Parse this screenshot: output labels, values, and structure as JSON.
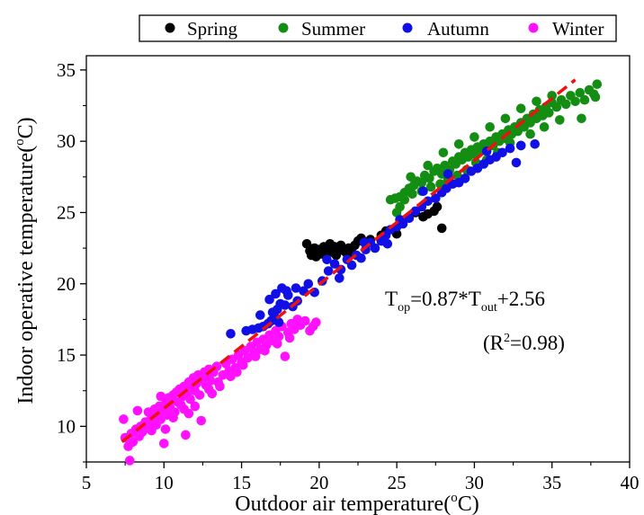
{
  "colors": {
    "spring": "#000000",
    "summer": "#138e13",
    "autumn": "#1010e6",
    "winter": "#ff10ff",
    "fit": "#ee1111",
    "axis": "#000000"
  },
  "chart_data": {
    "type": "scatter",
    "title": "",
    "xlabel": "Outdoor air temperature(",
    "xlabel_sup": "o",
    "xlabel_tail": "C)",
    "ylabel": "Indoor operative temperature(",
    "ylabel_sup": "o",
    "ylabel_tail": "C)",
    "xlim": [
      5,
      40
    ],
    "ylim": [
      7.5,
      36
    ],
    "xticks": [
      "5",
      "10",
      "15",
      "20",
      "25",
      "30",
      "35",
      "40"
    ],
    "yticks": [
      "10",
      "15",
      "20",
      "25",
      "30",
      "35"
    ],
    "grid": false,
    "legend": "top",
    "legend_entries": [
      "Spring",
      "Summer",
      "Autumn",
      "Winter"
    ],
    "annotation": {
      "eq_main": "T",
      "eq_sub1": "op",
      "eq_mid": "=0.87*T",
      "eq_sub2": "out",
      "eq_tail": "+2.56",
      "r2_open": "(R",
      "r2_sup": "2",
      "r2_tail": "=0.98)"
    },
    "fit_line": {
      "slope": 0.87,
      "intercept": 2.56,
      "x_range": [
        7.3,
        36.5
      ]
    },
    "series": [
      {
        "name": "Spring",
        "points": [
          [
            19.2,
            22.8
          ],
          [
            19.4,
            22.3
          ],
          [
            19.5,
            22.0
          ],
          [
            19.7,
            22.5
          ],
          [
            19.8,
            21.9
          ],
          [
            20.0,
            22.4
          ],
          [
            20.1,
            22.1
          ],
          [
            20.3,
            22.6
          ],
          [
            20.4,
            22.0
          ],
          [
            20.6,
            22.3
          ],
          [
            20.7,
            22.8
          ],
          [
            20.9,
            22.2
          ],
          [
            21.0,
            22.6
          ],
          [
            21.1,
            22.0
          ],
          [
            21.3,
            22.4
          ],
          [
            21.4,
            22.7
          ],
          [
            21.6,
            22.3
          ],
          [
            21.8,
            22.1
          ],
          [
            21.9,
            22.5
          ],
          [
            22.1,
            22.2
          ],
          [
            22.3,
            22.7
          ],
          [
            22.5,
            23.0
          ],
          [
            22.7,
            23.2
          ],
          [
            23.0,
            22.9
          ],
          [
            23.3,
            23.1
          ],
          [
            24.0,
            23.4
          ],
          [
            24.3,
            23.7
          ],
          [
            25.0,
            23.5
          ],
          [
            26.2,
            25.0
          ],
          [
            26.7,
            24.7
          ],
          [
            27.0,
            24.9
          ],
          [
            27.4,
            25.1
          ],
          [
            27.6,
            25.4
          ],
          [
            27.9,
            23.9
          ]
        ]
      },
      {
        "name": "Summer",
        "points": [
          [
            24.6,
            25.9
          ],
          [
            24.9,
            26.0
          ],
          [
            25.2,
            26.1
          ],
          [
            25.5,
            26.4
          ],
          [
            25.8,
            26.7
          ],
          [
            26.1,
            26.9
          ],
          [
            26.3,
            27.2
          ],
          [
            26.6,
            27.1
          ],
          [
            26.8,
            27.6
          ],
          [
            27.1,
            27.4
          ],
          [
            27.4,
            27.9
          ],
          [
            27.6,
            28.1
          ],
          [
            27.9,
            27.7
          ],
          [
            28.1,
            28.3
          ],
          [
            28.4,
            28.0
          ],
          [
            28.6,
            28.6
          ],
          [
            28.8,
            28.4
          ],
          [
            29.0,
            28.9
          ],
          [
            29.2,
            28.7
          ],
          [
            29.4,
            29.2
          ],
          [
            29.6,
            28.9
          ],
          [
            29.8,
            29.4
          ],
          [
            30.0,
            29.1
          ],
          [
            30.2,
            29.6
          ],
          [
            30.4,
            29.3
          ],
          [
            30.6,
            29.8
          ],
          [
            30.8,
            29.5
          ],
          [
            31.0,
            30.0
          ],
          [
            31.2,
            29.7
          ],
          [
            31.4,
            30.3
          ],
          [
            31.6,
            30.0
          ],
          [
            31.8,
            30.5
          ],
          [
            32.0,
            30.2
          ],
          [
            32.2,
            30.8
          ],
          [
            32.4,
            30.5
          ],
          [
            32.6,
            31.0
          ],
          [
            32.8,
            30.7
          ],
          [
            33.0,
            31.3
          ],
          [
            33.2,
            31.0
          ],
          [
            33.4,
            31.6
          ],
          [
            33.6,
            31.3
          ],
          [
            33.8,
            31.9
          ],
          [
            34.0,
            31.6
          ],
          [
            34.2,
            32.2
          ],
          [
            34.4,
            31.8
          ],
          [
            34.6,
            32.4
          ],
          [
            34.8,
            32.0
          ],
          [
            35.0,
            32.7
          ],
          [
            35.3,
            32.4
          ],
          [
            35.6,
            32.9
          ],
          [
            35.9,
            32.6
          ],
          [
            36.2,
            33.2
          ],
          [
            36.5,
            32.8
          ],
          [
            36.8,
            33.4
          ],
          [
            37.1,
            32.9
          ],
          [
            37.4,
            33.6
          ],
          [
            37.7,
            33.3
          ],
          [
            37.9,
            34.0
          ],
          [
            37.8,
            33.1
          ],
          [
            36.9,
            31.6
          ],
          [
            35.5,
            31.5
          ],
          [
            34.5,
            31.0
          ],
          [
            33.6,
            30.5
          ],
          [
            33.0,
            29.7
          ],
          [
            32.3,
            29.9
          ],
          [
            31.5,
            29.2
          ],
          [
            30.8,
            28.7
          ],
          [
            30.1,
            28.5
          ],
          [
            29.5,
            28.0
          ],
          [
            28.9,
            27.6
          ],
          [
            28.3,
            27.3
          ],
          [
            27.8,
            27.0
          ],
          [
            27.2,
            26.8
          ],
          [
            26.6,
            26.5
          ],
          [
            26.0,
            26.3
          ],
          [
            25.5,
            25.9
          ],
          [
            25.2,
            25.4
          ],
          [
            25.0,
            25.0
          ],
          [
            25.9,
            27.5
          ],
          [
            27.0,
            28.3
          ],
          [
            28.0,
            29.2
          ],
          [
            29.0,
            29.8
          ],
          [
            30.0,
            30.3
          ],
          [
            31.0,
            31.0
          ],
          [
            32.0,
            31.6
          ],
          [
            33.0,
            32.3
          ],
          [
            34.0,
            32.8
          ],
          [
            35.0,
            33.2
          ]
        ]
      },
      {
        "name": "Autumn",
        "points": [
          [
            14.3,
            16.5
          ],
          [
            15.3,
            16.7
          ],
          [
            15.7,
            16.8
          ],
          [
            16.1,
            16.9
          ],
          [
            16.4,
            17.0
          ],
          [
            16.7,
            17.2
          ],
          [
            16.9,
            17.4
          ],
          [
            17.1,
            17.8
          ],
          [
            17.3,
            18.2
          ],
          [
            17.5,
            18.6
          ],
          [
            17.8,
            18.5
          ],
          [
            16.8,
            18.9
          ],
          [
            17.2,
            19.3
          ],
          [
            17.6,
            19.7
          ],
          [
            17.9,
            19.5
          ],
          [
            18.0,
            19.2
          ],
          [
            18.3,
            18.4
          ],
          [
            18.6,
            18.8
          ],
          [
            19.0,
            19.5
          ],
          [
            19.3,
            20.0
          ],
          [
            19.7,
            19.4
          ],
          [
            20.2,
            20.2
          ],
          [
            20.6,
            20.9
          ],
          [
            21.0,
            21.4
          ],
          [
            21.4,
            21.0
          ],
          [
            21.8,
            21.7
          ],
          [
            22.1,
            21.3
          ],
          [
            22.4,
            22.0
          ],
          [
            22.7,
            21.8
          ],
          [
            23.0,
            22.4
          ],
          [
            23.3,
            22.9
          ],
          [
            23.6,
            22.5
          ],
          [
            24.0,
            23.0
          ],
          [
            24.3,
            23.4
          ],
          [
            24.6,
            23.8
          ],
          [
            25.0,
            24.0
          ],
          [
            25.4,
            24.2
          ],
          [
            25.8,
            24.6
          ],
          [
            26.2,
            25.1
          ],
          [
            26.6,
            25.4
          ],
          [
            27.0,
            25.8
          ],
          [
            27.5,
            26.0
          ],
          [
            27.9,
            26.4
          ],
          [
            28.2,
            26.7
          ],
          [
            28.6,
            27.0
          ],
          [
            29.0,
            27.1
          ],
          [
            29.4,
            27.4
          ],
          [
            29.8,
            27.9
          ],
          [
            30.2,
            28.1
          ],
          [
            30.6,
            28.4
          ],
          [
            31.0,
            28.7
          ],
          [
            31.4,
            28.9
          ],
          [
            31.8,
            29.2
          ],
          [
            32.3,
            29.5
          ],
          [
            33.0,
            29.7
          ],
          [
            33.9,
            29.8
          ],
          [
            16.2,
            17.8
          ],
          [
            17.0,
            18.0
          ],
          [
            17.4,
            17.3
          ],
          [
            18.5,
            19.7
          ],
          [
            20.5,
            21.7
          ],
          [
            21.3,
            20.4
          ],
          [
            22.9,
            22.9
          ],
          [
            24.4,
            22.8
          ],
          [
            25.2,
            24.5
          ],
          [
            26.7,
            26.5
          ],
          [
            28.3,
            27.7
          ],
          [
            30.8,
            29.3
          ],
          [
            32.7,
            28.5
          ]
        ]
      },
      {
        "name": "Winter",
        "points": [
          [
            7.4,
            10.5
          ],
          [
            7.5,
            9.2
          ],
          [
            7.7,
            8.6
          ],
          [
            7.8,
            7.6
          ],
          [
            7.9,
            9.5
          ],
          [
            8.0,
            8.9
          ],
          [
            8.2,
            9.8
          ],
          [
            8.4,
            9.3
          ],
          [
            8.5,
            10.0
          ],
          [
            8.6,
            9.6
          ],
          [
            8.8,
            10.3
          ],
          [
            8.9,
            9.9
          ],
          [
            9.0,
            11.0
          ],
          [
            9.1,
            10.4
          ],
          [
            9.2,
            9.7
          ],
          [
            9.3,
            10.7
          ],
          [
            9.4,
            11.2
          ],
          [
            9.5,
            10.1
          ],
          [
            9.6,
            10.9
          ],
          [
            9.7,
            11.4
          ],
          [
            9.8,
            10.5
          ],
          [
            9.9,
            11.1
          ],
          [
            10.0,
            8.8
          ],
          [
            10.1,
            11.6
          ],
          [
            10.2,
            10.8
          ],
          [
            10.3,
            12.0
          ],
          [
            10.4,
            11.3
          ],
          [
            10.5,
            11.8
          ],
          [
            10.6,
            12.2
          ],
          [
            10.7,
            11.0
          ],
          [
            10.8,
            12.4
          ],
          [
            10.9,
            11.7
          ],
          [
            11.0,
            12.6
          ],
          [
            11.1,
            11.5
          ],
          [
            11.2,
            12.1
          ],
          [
            11.3,
            12.8
          ],
          [
            11.4,
            9.4
          ],
          [
            11.5,
            12.3
          ],
          [
            11.6,
            13.1
          ],
          [
            11.7,
            11.9
          ],
          [
            11.8,
            12.7
          ],
          [
            11.9,
            13.4
          ],
          [
            12.0,
            12.5
          ],
          [
            12.1,
            13.0
          ],
          [
            12.2,
            13.6
          ],
          [
            12.3,
            12.2
          ],
          [
            12.4,
            10.4
          ],
          [
            12.5,
            13.3
          ],
          [
            12.6,
            13.8
          ],
          [
            12.7,
            12.9
          ],
          [
            12.8,
            13.5
          ],
          [
            12.9,
            14.0
          ],
          [
            13.0,
            13.2
          ],
          [
            13.2,
            13.8
          ],
          [
            13.4,
            14.2
          ],
          [
            13.6,
            12.8
          ],
          [
            13.8,
            13.6
          ],
          [
            14.0,
            14.4
          ],
          [
            14.2,
            13.9
          ],
          [
            14.4,
            14.7
          ],
          [
            14.6,
            14.1
          ],
          [
            14.8,
            15.0
          ],
          [
            15.0,
            14.5
          ],
          [
            15.2,
            15.3
          ],
          [
            15.4,
            14.8
          ],
          [
            15.6,
            15.6
          ],
          [
            15.8,
            15.2
          ],
          [
            16.0,
            15.9
          ],
          [
            16.2,
            15.4
          ],
          [
            16.4,
            16.1
          ],
          [
            16.6,
            15.7
          ],
          [
            16.8,
            16.4
          ],
          [
            17.0,
            16.0
          ],
          [
            17.2,
            16.7
          ],
          [
            17.4,
            16.3
          ],
          [
            17.6,
            17.0
          ],
          [
            17.8,
            14.9
          ],
          [
            18.0,
            16.6
          ],
          [
            18.2,
            17.2
          ],
          [
            18.4,
            16.8
          ],
          [
            18.6,
            17.5
          ],
          [
            18.8,
            17.1
          ],
          [
            19.1,
            17.4
          ],
          [
            19.4,
            16.7
          ],
          [
            19.6,
            17.0
          ],
          [
            19.8,
            17.3
          ],
          [
            8.3,
            11.1
          ],
          [
            9.0,
            10.0
          ],
          [
            9.8,
            12.1
          ],
          [
            10.6,
            10.6
          ],
          [
            11.3,
            11.2
          ],
          [
            12.0,
            11.4
          ],
          [
            12.9,
            12.6
          ],
          [
            13.5,
            13.1
          ],
          [
            14.3,
            13.5
          ],
          [
            15.1,
            14.3
          ],
          [
            15.9,
            14.9
          ],
          [
            16.5,
            15.3
          ],
          [
            17.3,
            15.8
          ],
          [
            18.1,
            16.2
          ],
          [
            10.1,
            9.8
          ],
          [
            11.6,
            10.9
          ],
          [
            13.1,
            12.3
          ],
          [
            14.7,
            13.8
          ]
        ]
      }
    ]
  }
}
